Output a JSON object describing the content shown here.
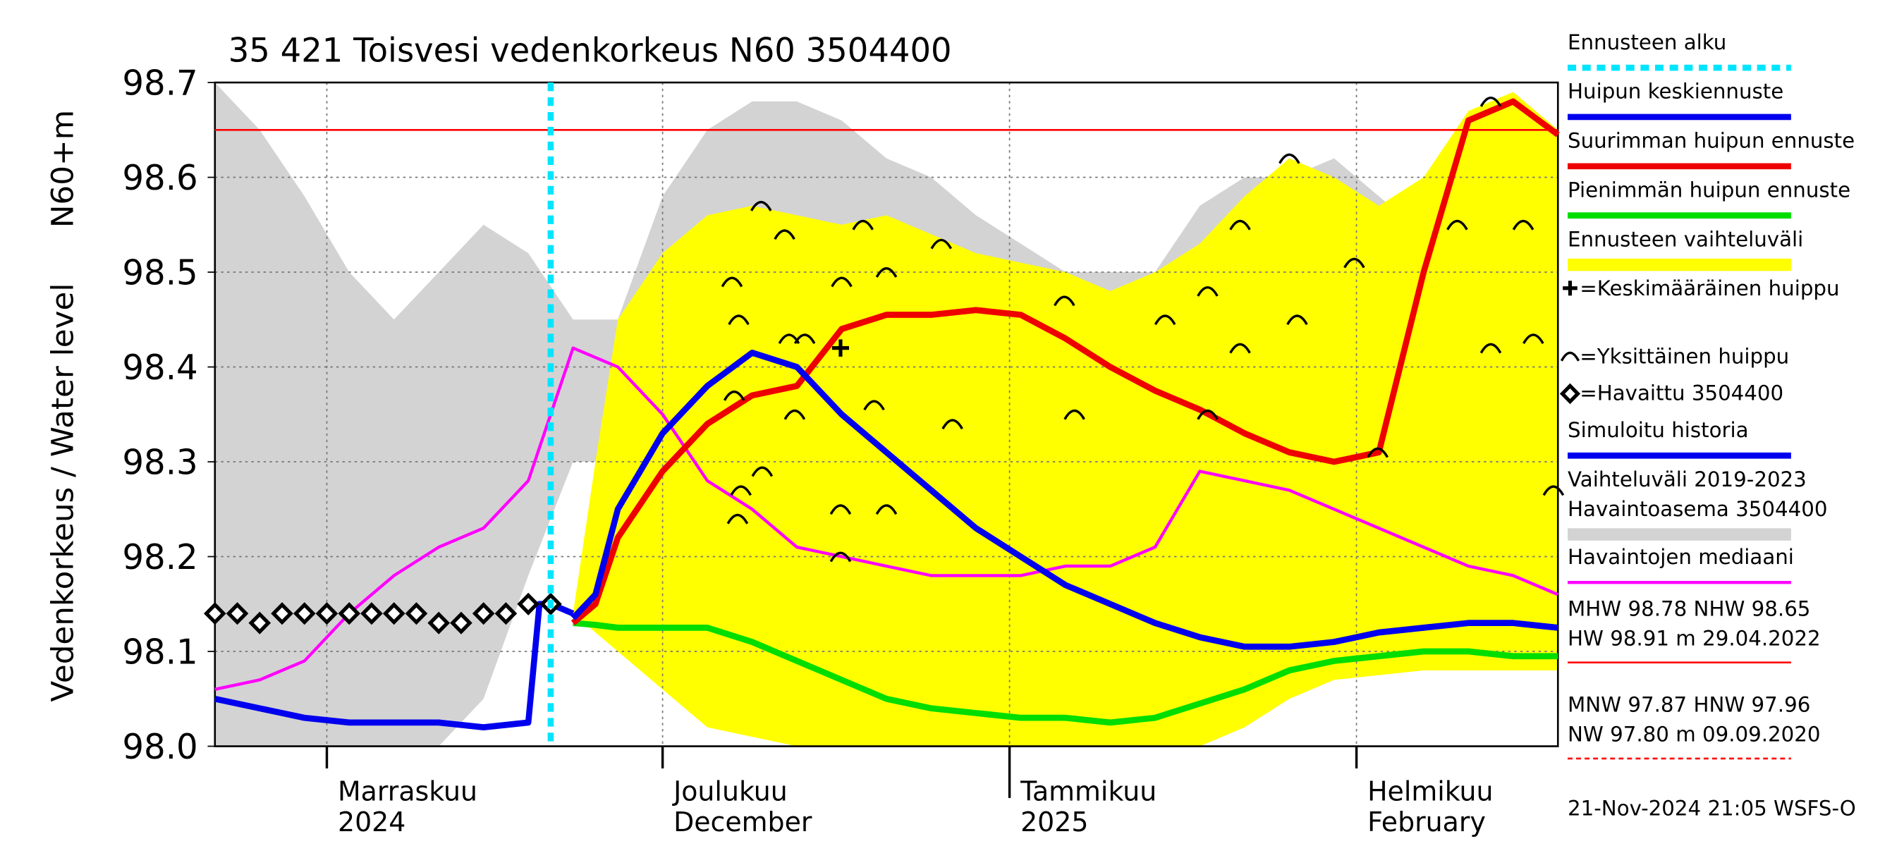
{
  "chart_data": {
    "type": "line",
    "title": "35 421 Toisvesi vedenkorkeus N60 3504400",
    "y_label": "Vedenkorkeus / Water level",
    "y_unit": "N60+m",
    "footer": "21-Nov-2024 21:05 WSFS-O",
    "xlim": [
      0,
      120
    ],
    "xticks": [
      {
        "value": 10,
        "label": [
          "Marraskuu",
          "2024"
        ]
      },
      {
        "value": 40,
        "label": [
          "Joulukuu",
          "December"
        ]
      },
      {
        "value": 71,
        "label": [
          "Tammikuu",
          "2025"
        ]
      },
      {
        "value": 102,
        "label": [
          "Helmikuu",
          "February"
        ]
      }
    ],
    "ylim": [
      98.0,
      98.7
    ],
    "yticks": [
      {
        "value": 98.0,
        "label": "98.0"
      },
      98.1,
      98.2,
      98.3,
      98.4,
      98.5,
      98.6,
      98.7
    ],
    "grid": true,
    "reference_line": {
      "value": 98.65,
      "color": "#ff0000"
    },
    "series": [
      {
        "name": "Ennusteen alku",
        "kind": "vline",
        "color": "#00e5ff",
        "x": 30
      },
      {
        "name": "Huipun keskiennuste",
        "kind": "line",
        "color": "#0000ee",
        "x": [
          32,
          34,
          36,
          40,
          44,
          48,
          52,
          56,
          60,
          64,
          68,
          72,
          76,
          80,
          84,
          88,
          92,
          96,
          100,
          104,
          108,
          112,
          116,
          120
        ],
        "values": [
          98.135,
          98.16,
          98.25,
          98.33,
          98.38,
          98.415,
          98.4,
          98.35,
          98.31,
          98.27,
          98.23,
          98.2,
          98.17,
          98.15,
          98.13,
          98.115,
          98.105,
          98.105,
          98.11,
          98.12,
          98.125,
          98.13,
          98.13,
          98.125
        ]
      },
      {
        "name": "Suurimman huipun ennuste",
        "kind": "line",
        "color": "#ee0000",
        "x": [
          32,
          34,
          36,
          40,
          44,
          48,
          52,
          56,
          60,
          64,
          68,
          72,
          76,
          80,
          84,
          88,
          92,
          96,
          100,
          104,
          108,
          112,
          116,
          120
        ],
        "values": [
          98.13,
          98.15,
          98.22,
          98.29,
          98.34,
          98.37,
          98.38,
          98.44,
          98.455,
          98.455,
          98.46,
          98.455,
          98.43,
          98.4,
          98.375,
          98.355,
          98.33,
          98.31,
          98.3,
          98.31,
          98.5,
          98.66,
          98.68,
          98.645
        ]
      },
      {
        "name": "Pienimmän huipun ennuste",
        "kind": "line",
        "color": "#00dd00",
        "x": [
          32,
          34,
          36,
          40,
          44,
          48,
          52,
          56,
          60,
          64,
          68,
          72,
          76,
          80,
          84,
          88,
          92,
          96,
          100,
          104,
          108,
          112,
          116,
          120
        ],
        "values": [
          98.13,
          98.128,
          98.125,
          98.125,
          98.125,
          98.11,
          98.09,
          98.07,
          98.05,
          98.04,
          98.035,
          98.03,
          98.03,
          98.025,
          98.03,
          98.045,
          98.06,
          98.08,
          98.09,
          98.095,
          98.1,
          98.1,
          98.095,
          98.095
        ]
      },
      {
        "name": "Ennusteen vaihteluväli",
        "kind": "band",
        "color": "#ffff00",
        "x": [
          32,
          34,
          36,
          40,
          44,
          48,
          52,
          56,
          60,
          64,
          68,
          72,
          76,
          80,
          84,
          88,
          92,
          96,
          100,
          104,
          108,
          112,
          116,
          120
        ],
        "low": [
          98.14,
          98.12,
          98.1,
          98.06,
          98.02,
          98.01,
          98.0,
          98.0,
          98.0,
          98.0,
          98.0,
          98.0,
          98.0,
          98.0,
          98.0,
          98.0,
          98.02,
          98.05,
          98.07,
          98.075,
          98.08,
          98.08,
          98.08,
          98.08
        ],
        "high": [
          98.14,
          98.3,
          98.45,
          98.52,
          98.56,
          98.57,
          98.56,
          98.55,
          98.56,
          98.54,
          98.52,
          98.51,
          98.5,
          98.48,
          98.5,
          98.53,
          98.58,
          98.62,
          98.6,
          98.57,
          98.6,
          98.67,
          98.69,
          98.65
        ]
      },
      {
        "name": "=Keskimääräinen huippu",
        "kind": "plus",
        "color": "#000000",
        "x": [
          55.9
        ],
        "values": [
          98.42
        ]
      },
      {
        "name": "=Yksittäinen huippu",
        "kind": "arc",
        "color": "#000000",
        "x": [
          48.8,
          50.9,
          46.2,
          46.8,
          57.9,
          60,
          56,
          64.9,
          75.9,
          84.9,
          88.7,
          91.6,
          96,
          101.8,
          111,
          116.9,
          91.6,
          96.7,
          114,
          117.8,
          46.4,
          51.3,
          52.7,
          58.9,
          65.9,
          76.8,
          88.7,
          47,
          48.9,
          55.9,
          60,
          55.9,
          103.9,
          119.6,
          114,
          46.7,
          51.8
        ],
        "values": [
          98.57,
          98.54,
          98.49,
          98.45,
          98.55,
          98.5,
          98.49,
          98.53,
          98.47,
          98.45,
          98.48,
          98.55,
          98.62,
          98.51,
          98.55,
          98.55,
          98.42,
          98.45,
          98.42,
          98.43,
          98.37,
          98.43,
          98.43,
          98.36,
          98.34,
          98.35,
          98.35,
          98.27,
          98.29,
          98.25,
          98.25,
          98.2,
          98.31,
          98.27,
          98.68,
          98.24,
          98.35
        ]
      },
      {
        "name": "=Havaittu 3504400",
        "kind": "diamond",
        "color": "#000000",
        "x": [
          0,
          2,
          4,
          6,
          8,
          10,
          12,
          14,
          16,
          18,
          20,
          22,
          24,
          26,
          28,
          30
        ],
        "values": [
          98.14,
          98.14,
          98.13,
          98.14,
          98.14,
          98.14,
          98.14,
          98.14,
          98.14,
          98.14,
          98.13,
          98.13,
          98.14,
          98.14,
          98.15,
          98.15
        ]
      },
      {
        "name": "Simuloitu historia",
        "kind": "line",
        "color": "#0000ee",
        "x": [
          0,
          4,
          8,
          12,
          16,
          20,
          24,
          28,
          29,
          30,
          32
        ],
        "values": [
          98.05,
          98.04,
          98.03,
          98.025,
          98.025,
          98.025,
          98.02,
          98.025,
          98.15,
          98.15,
          98.14
        ]
      },
      {
        "name": [
          "Vaihteluväli 2019-2023",
          " Havaintoasema 3504400"
        ],
        "kind": "band",
        "color": "#d3d3d3",
        "x": [
          0,
          4,
          8,
          12,
          16,
          20,
          24,
          28,
          32,
          36,
          40,
          44,
          48,
          52,
          56,
          60,
          64,
          68,
          72,
          76,
          80,
          84,
          88,
          92,
          96,
          100,
          104,
          108,
          112,
          116,
          120
        ],
        "low": [
          98.0,
          98.0,
          98.0,
          98.0,
          98.0,
          98.0,
          98.05,
          98.18,
          98.3,
          98.3,
          98.26,
          98.25,
          98.23,
          98.2,
          98.19,
          98.17,
          98.16,
          98.15,
          98.0,
          98.04,
          98.06,
          98.08,
          98.1,
          98.1,
          98.1,
          98.1,
          98.1,
          98.11,
          98.12,
          98.11,
          98.12
        ],
        "high": [
          98.7,
          98.65,
          98.58,
          98.5,
          98.45,
          98.5,
          98.55,
          98.52,
          98.45,
          98.45,
          98.58,
          98.65,
          98.68,
          98.68,
          98.66,
          98.62,
          98.6,
          98.56,
          98.53,
          98.5,
          98.5,
          98.5,
          98.57,
          98.6,
          98.6,
          98.62,
          98.58,
          98.54,
          98.5,
          98.52,
          98.6
        ]
      },
      {
        "name": "Havaintojen mediaani",
        "kind": "line",
        "color": "#ff00ff",
        "x": [
          0,
          4,
          8,
          12,
          16,
          20,
          24,
          28,
          32,
          36,
          40,
          44,
          48,
          52,
          56,
          60,
          64,
          68,
          72,
          76,
          80,
          84,
          88,
          92,
          96,
          100,
          104,
          108,
          112,
          116,
          120
        ],
        "values": [
          98.06,
          98.07,
          98.09,
          98.14,
          98.18,
          98.21,
          98.23,
          98.28,
          98.42,
          98.4,
          98.35,
          98.28,
          98.25,
          98.21,
          98.2,
          98.19,
          98.18,
          98.18,
          98.18,
          98.19,
          98.19,
          98.21,
          98.29,
          98.28,
          98.27,
          98.25,
          98.23,
          98.21,
          98.19,
          98.18,
          98.16
        ]
      }
    ],
    "stats": [
      {
        "lines": [
          "MHW  98.78 NHW  98.65",
          "HW  98.91 m 29.04.2022"
        ],
        "color": "#ff0000",
        "dashed": false
      },
      {
        "lines": [
          "MNW  97.87 HNW  97.96",
          "NW  97.80 m 09.09.2020"
        ],
        "color": "#ff0000",
        "dashed": true
      }
    ]
  }
}
